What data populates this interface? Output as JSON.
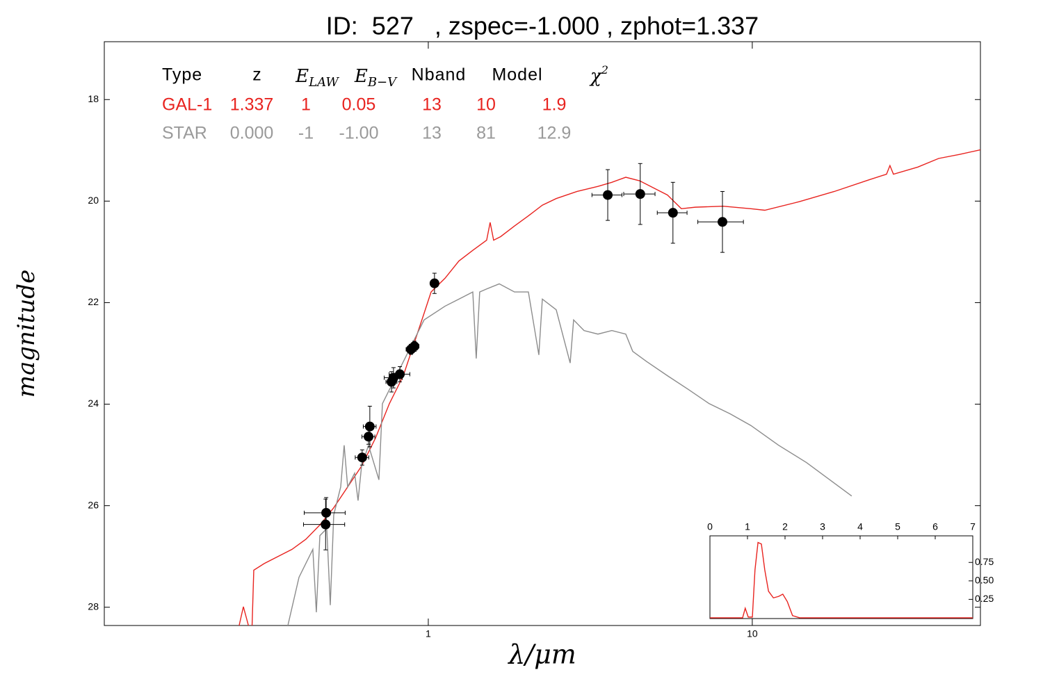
{
  "chart_data": [
    {
      "type": "scatter",
      "title": "ID:  527   , zspec=-1.000 , zphot=1.337",
      "xlabel": "λ/μm",
      "ylabel": "magnitude",
      "xscale": "log",
      "xlim": [
        0.1,
        50.6
      ],
      "ylim": [
        28.36,
        16.86
      ],
      "xticks": [
        1,
        10
      ],
      "yticks": [
        18,
        20,
        22,
        24,
        26,
        28
      ],
      "table": {
        "header": [
          "Type",
          "z",
          {
            "base": "E",
            "sub": "LAW"
          },
          {
            "base": "E",
            "sub": "B−V"
          },
          "Nband",
          "Model",
          {
            "base": "χ",
            "sup": "2"
          }
        ],
        "rows": [
          {
            "color": "#e8231f",
            "cells": [
              "GAL-1",
              "1.337",
              "1",
              "0.05",
              "13",
              "10",
              "1.9"
            ]
          },
          {
            "color": "#9a9a9a",
            "cells": [
              "STAR",
              "0.000",
              "-1",
              "-1.00",
              "13",
              "81",
              "12.9"
            ]
          }
        ]
      },
      "lines": [
        {
          "color": "#e8231f",
          "x": [
            0.2557,
            0.2687,
            0.2851,
            0.2893,
            0.3115,
            0.3439,
            0.3797,
            0.4191,
            0.4627,
            0.5107,
            0.5638,
            0.6223,
            0.687,
            0.7584,
            0.8372,
            0.924,
            0.9707,
            1.02,
            1.126,
            1.243,
            1.372,
            1.514,
            1.552,
            1.591,
            1.672,
            1.845,
            2.037,
            2.249,
            2.482,
            2.879,
            3.339,
            3.686,
            4.069,
            4.492,
            4.958,
            5.473,
            6.041,
            6.669,
            8.126,
            9.9,
            10.93,
            13.99,
            17.92,
            22.94,
            25.96,
            26.6,
            27.27,
            32.41,
            37.6,
            43.61,
            50.58
          ],
          "y": [
            28.6,
            27.99,
            28.6,
            27.27,
            27.14,
            27.0,
            26.86,
            26.66,
            26.38,
            26.04,
            25.63,
            25.22,
            24.67,
            23.99,
            23.44,
            22.62,
            22.21,
            21.79,
            21.52,
            21.18,
            20.97,
            20.77,
            20.42,
            20.77,
            20.7,
            20.49,
            20.29,
            20.08,
            19.95,
            19.81,
            19.71,
            19.63,
            19.53,
            19.6,
            19.74,
            19.88,
            20.15,
            20.12,
            20.1,
            20.15,
            20.18,
            20.01,
            19.81,
            19.58,
            19.47,
            19.3,
            19.47,
            19.33,
            19.16,
            19.08,
            18.99
          ]
        },
        {
          "color": "#8c8c8c",
          "x": [
            0.3613,
            0.399,
            0.4402,
            0.4513,
            0.4627,
            0.4861,
            0.4983,
            0.5107,
            0.5366,
            0.55,
            0.5638,
            0.5924,
            0.6071,
            0.6223,
            0.6538,
            0.7041,
            0.7218,
            0.7967,
            0.8795,
            0.9707,
            1.126,
            1.243,
            1.372,
            1.406,
            1.441,
            1.514,
            1.656,
            1.845,
            2.037,
            2.194,
            2.249,
            2.482,
            2.741,
            2.809,
            3.025,
            3.339,
            3.686,
            4.069,
            4.275,
            4.719,
            5.473,
            6.347,
            7.362,
            8.538,
            9.9,
            12.06,
            14.7,
            20.27
          ],
          "y": [
            28.6,
            27.41,
            26.86,
            28.1,
            26.59,
            26.45,
            27.96,
            26.18,
            25.63,
            24.81,
            25.63,
            25.36,
            25.9,
            25.22,
            24.81,
            25.49,
            23.99,
            23.44,
            22.89,
            22.34,
            22.07,
            21.93,
            21.79,
            23.1,
            21.79,
            21.73,
            21.63,
            21.79,
            21.79,
            23.03,
            21.93,
            22.14,
            23.19,
            22.34,
            22.55,
            22.62,
            22.55,
            22.62,
            22.96,
            23.16,
            23.44,
            23.71,
            23.99,
            24.19,
            24.42,
            24.81,
            25.15,
            25.81
          ]
        }
      ],
      "points": {
        "color": "#000000",
        "x": [
          0.484,
          0.482,
          0.625,
          0.654,
          0.66,
          0.77,
          0.781,
          0.817,
          0.884,
          0.906,
          1.045,
          3.58,
          4.51,
          5.69,
          8.09
        ],
        "y": [
          26.14,
          26.37,
          25.05,
          24.64,
          24.44,
          23.56,
          23.48,
          23.41,
          22.92,
          22.86,
          21.62,
          19.88,
          19.86,
          20.23,
          20.41
        ],
        "xerr": [
          0.07,
          0.07,
          0.03,
          0.03,
          0.03,
          0.03,
          0.05,
          0.06,
          0.03,
          0.03,
          0.03,
          0.38,
          0.5,
          0.6,
          1.3
        ],
        "yerr": [
          0.3,
          0.5,
          0.15,
          0.15,
          0.4,
          0.2,
          0.2,
          0.15,
          0.1,
          0.1,
          0.2,
          0.5,
          0.6,
          0.6,
          0.6
        ]
      }
    },
    {
      "type": "line",
      "xlim": [
        0,
        7
      ],
      "xticks": [
        0,
        1,
        2,
        3,
        4,
        5,
        6,
        7
      ],
      "ylim": [
        -0.01,
        1.11
      ],
      "yticks": [
        0.25,
        {
          "value": 0.5,
          "label": "0.50"
        },
        0.75
      ],
      "color": "#e8231f",
      "x": [
        0,
        0.87,
        0.94,
        1.02,
        1.13,
        1.2,
        1.28,
        1.37,
        1.46,
        1.56,
        1.69,
        1.83,
        1.94,
        2.06,
        2.2,
        2.39,
        7.0
      ],
      "values": [
        0,
        0,
        0.13,
        0.01,
        0.01,
        0.65,
        1.02,
        1.0,
        0.65,
        0.36,
        0.27,
        0.29,
        0.32,
        0.22,
        0.03,
        0,
        0
      ]
    }
  ]
}
